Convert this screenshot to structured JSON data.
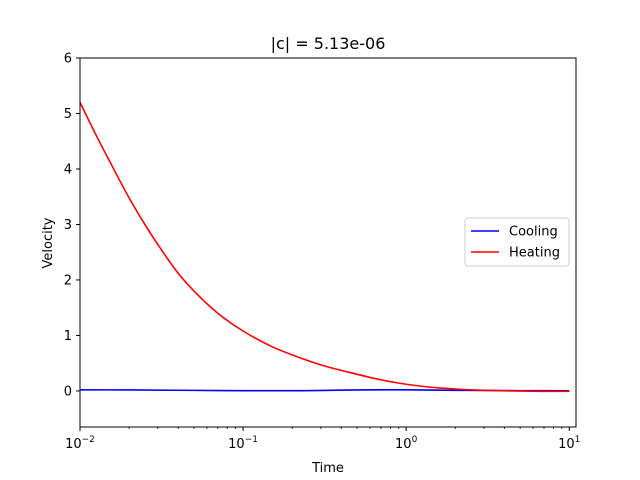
{
  "chart_data": {
    "type": "line",
    "title": "|c| = 5.13e-06",
    "xlabel": "Time",
    "ylabel": "Velocity",
    "xscale": "log",
    "xlim": [
      0.01,
      11
    ],
    "ylim": [
      -0.65,
      6
    ],
    "yticks": [
      0,
      1,
      2,
      3,
      4,
      5,
      6
    ],
    "xticks": [
      {
        "value": 0.01,
        "base": "10",
        "exp": "−2"
      },
      {
        "value": 0.1,
        "base": "10",
        "exp": "−1"
      },
      {
        "value": 1,
        "base": "10",
        "exp": "0"
      },
      {
        "value": 10,
        "base": "10",
        "exp": "1"
      }
    ],
    "legend_position": "center-right",
    "grid": false,
    "series": [
      {
        "name": "Cooling",
        "color": "#0000ff",
        "x": [
          0.01,
          0.02,
          0.05,
          0.1,
          0.2,
          0.5,
          1,
          2,
          3,
          5,
          10
        ],
        "y": [
          0.02,
          0.018,
          0.01,
          0.005,
          0.005,
          0.018,
          0.02,
          0.012,
          0.008,
          0.005,
          0.003
        ]
      },
      {
        "name": "Heating",
        "color": "#ff0000",
        "x": [
          0.01,
          0.0125,
          0.015,
          0.02,
          0.025,
          0.03,
          0.04,
          0.05,
          0.07,
          0.1,
          0.15,
          0.2,
          0.3,
          0.5,
          0.7,
          1,
          1.5,
          2,
          3,
          4,
          5,
          7,
          10
        ],
        "y": [
          5.2,
          4.62,
          4.17,
          3.48,
          3.0,
          2.64,
          2.12,
          1.8,
          1.4,
          1.08,
          0.8,
          0.65,
          0.47,
          0.3,
          0.2,
          0.12,
          0.06,
          0.035,
          0.012,
          0.003,
          -0.002,
          -0.006,
          -0.008
        ]
      }
    ]
  }
}
